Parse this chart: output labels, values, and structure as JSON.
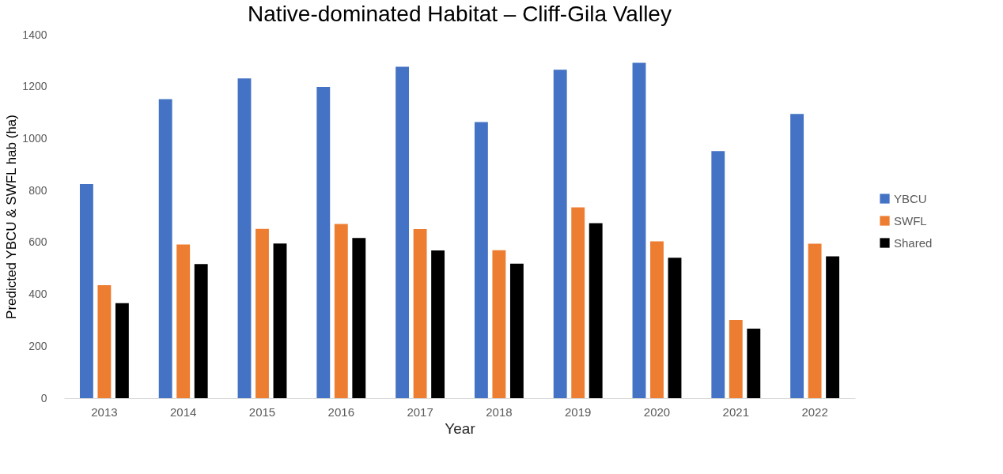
{
  "chart_data": {
    "type": "bar",
    "title": "Native-dominated Habitat – Cliff-Gila Valley",
    "xlabel": "Year",
    "ylabel": "Predicted YBCU & SWFL hab (ha)",
    "categories": [
      "2013",
      "2014",
      "2015",
      "2016",
      "2017",
      "2018",
      "2019",
      "2020",
      "2021",
      "2022"
    ],
    "series": [
      {
        "name": "YBCU",
        "color": "#4472c4",
        "values": [
          825,
          1152,
          1232,
          1199,
          1277,
          1064,
          1265,
          1292,
          952,
          1095
        ]
      },
      {
        "name": "SWFL",
        "color": "#ed7d31",
        "values": [
          435,
          592,
          652,
          671,
          651,
          570,
          735,
          604,
          301,
          595
        ]
      },
      {
        "name": "Shared",
        "color": "#000000",
        "values": [
          366,
          517,
          596,
          617,
          569,
          518,
          674,
          541,
          268,
          546
        ]
      }
    ],
    "ylim": [
      0,
      1400
    ],
    "yticks": [
      0,
      200,
      400,
      600,
      800,
      1000,
      1200,
      1400
    ],
    "grid": false,
    "legend": "right"
  }
}
